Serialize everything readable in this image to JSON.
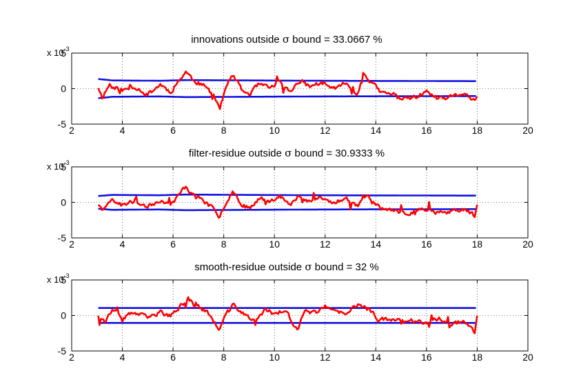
{
  "chart_data": [
    {
      "type": "line",
      "title_prefix": "innovations outside ",
      "title_symbol": "σ",
      "title_suffix": " bound = 33.0667 %",
      "xlim": [
        2,
        20
      ],
      "ylim": [
        -5,
        5
      ],
      "x_ticks": [
        "2",
        "4",
        "6",
        "8",
        "10",
        "12",
        "14",
        "16",
        "18",
        "20"
      ],
      "y_ticks": [
        "-5",
        "0",
        "5"
      ],
      "y_multiplier_base": "x 10",
      "y_multiplier_exp": "-3",
      "grid": true,
      "x_start": 3.05,
      "x_end": 18.0,
      "bound_points": [
        [
          3.05,
          1.35
        ],
        [
          3.6,
          1.15
        ],
        [
          5.5,
          1.1
        ],
        [
          6.5,
          1.2
        ],
        [
          9,
          1.15
        ],
        [
          12,
          1.1
        ],
        [
          18,
          1.05
        ]
      ],
      "anchors": [
        [
          3.05,
          0.2
        ],
        [
          3.2,
          -1.2
        ],
        [
          3.5,
          0.6
        ],
        [
          4.0,
          -0.3
        ],
        [
          4.5,
          0.3
        ],
        [
          5.0,
          -0.8
        ],
        [
          5.5,
          0.6
        ],
        [
          5.9,
          -0.5
        ],
        [
          6.2,
          1.0
        ],
        [
          6.5,
          2.4
        ],
        [
          6.8,
          1.2
        ],
        [
          7.2,
          0.4
        ],
        [
          7.6,
          -0.8
        ],
        [
          7.85,
          -2.8
        ],
        [
          8.1,
          0.3
        ],
        [
          8.35,
          1.9
        ],
        [
          8.7,
          -0.2
        ],
        [
          9.0,
          -0.8
        ],
        [
          9.4,
          0.6
        ],
        [
          9.8,
          0.0
        ],
        [
          10.2,
          1.0
        ],
        [
          10.6,
          -0.5
        ],
        [
          11.0,
          1.2
        ],
        [
          11.4,
          0.3
        ],
        [
          11.8,
          0.8
        ],
        [
          12.3,
          0.0
        ],
        [
          12.8,
          0.7
        ],
        [
          13.3,
          -0.7
        ],
        [
          13.5,
          2.2
        ],
        [
          13.8,
          1.0
        ],
        [
          14.2,
          -0.6
        ],
        [
          14.7,
          -0.8
        ],
        [
          15.2,
          -1.6
        ],
        [
          15.6,
          -1.1
        ],
        [
          16.0,
          -0.6
        ],
        [
          16.5,
          -1.5
        ],
        [
          17.0,
          -1.2
        ],
        [
          17.5,
          -0.6
        ],
        [
          17.9,
          -1.9
        ],
        [
          18.0,
          -1.5
        ]
      ],
      "seed": 11,
      "noise": 0.5
    },
    {
      "type": "line",
      "title_prefix": "filter-residue outside ",
      "title_symbol": "σ",
      "title_suffix": " bound = 30.9333 %",
      "xlim": [
        2,
        20
      ],
      "ylim": [
        -5,
        5
      ],
      "x_ticks": [
        "2",
        "4",
        "6",
        "8",
        "10",
        "12",
        "14",
        "16",
        "18",
        "20"
      ],
      "y_ticks": [
        "-5",
        "0",
        "5"
      ],
      "y_multiplier_base": "x 10",
      "y_multiplier_exp": "-3",
      "grid": true,
      "x_start": 3.05,
      "x_end": 18.0,
      "bound_points": [
        [
          3.05,
          0.9
        ],
        [
          3.6,
          1.05
        ],
        [
          5.5,
          1.0
        ],
        [
          6.5,
          1.1
        ],
        [
          9,
          1.05
        ],
        [
          12,
          1.0
        ],
        [
          18,
          0.95
        ]
      ],
      "anchors": [
        [
          3.05,
          -0.2
        ],
        [
          3.2,
          -1.0
        ],
        [
          3.5,
          0.5
        ],
        [
          4.0,
          -0.4
        ],
        [
          4.5,
          0.2
        ],
        [
          5.0,
          -0.6
        ],
        [
          5.5,
          0.4
        ],
        [
          5.9,
          -0.4
        ],
        [
          6.2,
          0.9
        ],
        [
          6.5,
          2.3
        ],
        [
          6.8,
          1.0
        ],
        [
          7.2,
          0.3
        ],
        [
          7.6,
          -1.0
        ],
        [
          7.8,
          -2.4
        ],
        [
          8.1,
          0.2
        ],
        [
          8.35,
          1.6
        ],
        [
          8.7,
          -0.1
        ],
        [
          9.0,
          -0.9
        ],
        [
          9.4,
          0.7
        ],
        [
          9.8,
          0.1
        ],
        [
          10.2,
          1.1
        ],
        [
          10.6,
          -0.5
        ],
        [
          11.0,
          1.0
        ],
        [
          11.4,
          0.2
        ],
        [
          11.8,
          0.7
        ],
        [
          12.3,
          -0.1
        ],
        [
          12.8,
          0.6
        ],
        [
          13.3,
          -0.5
        ],
        [
          13.5,
          0.9
        ],
        [
          13.8,
          0.5
        ],
        [
          14.2,
          -0.8
        ],
        [
          14.7,
          -1.4
        ],
        [
          15.2,
          -1.5
        ],
        [
          15.6,
          -1.2
        ],
        [
          16.0,
          -0.8
        ],
        [
          16.5,
          -1.6
        ],
        [
          17.0,
          -1.3
        ],
        [
          17.5,
          -0.9
        ],
        [
          17.9,
          -2.0
        ],
        [
          18.0,
          -0.5
        ]
      ],
      "seed": 23,
      "noise": 0.5
    },
    {
      "type": "line",
      "title_prefix": "smooth-residue outside ",
      "title_symbol": "σ",
      "title_suffix": " bound = 32 %",
      "xlim": [
        2,
        20
      ],
      "ylim": [
        -5,
        5
      ],
      "x_ticks": [
        "2",
        "4",
        "6",
        "8",
        "10",
        "12",
        "14",
        "16",
        "18",
        "20"
      ],
      "y_ticks": [
        "-5",
        "0",
        "5"
      ],
      "y_multiplier_base": "x 10",
      "y_multiplier_exp": "-3",
      "grid": true,
      "x_start": 3.05,
      "x_end": 18.0,
      "bound_points": [
        [
          3.05,
          1.05
        ],
        [
          18,
          1.05
        ]
      ],
      "anchors": [
        [
          3.05,
          0.1
        ],
        [
          3.3,
          -0.8
        ],
        [
          3.6,
          0.6
        ],
        [
          4.0,
          -0.3
        ],
        [
          4.5,
          0.4
        ],
        [
          5.0,
          -0.4
        ],
        [
          5.5,
          0.5
        ],
        [
          5.9,
          -0.2
        ],
        [
          6.2,
          1.0
        ],
        [
          6.6,
          2.4
        ],
        [
          6.9,
          1.4
        ],
        [
          7.3,
          0.6
        ],
        [
          7.6,
          -0.7
        ],
        [
          7.8,
          -2.2
        ],
        [
          8.1,
          0.2
        ],
        [
          8.4,
          1.5
        ],
        [
          8.8,
          0.2
        ],
        [
          9.2,
          -0.9
        ],
        [
          9.6,
          0.8
        ],
        [
          10.0,
          0.2
        ],
        [
          10.4,
          0.9
        ],
        [
          10.9,
          -2.2
        ],
        [
          11.2,
          0.6
        ],
        [
          11.6,
          0.4
        ],
        [
          12.0,
          1.2
        ],
        [
          12.4,
          0.4
        ],
        [
          12.9,
          0.3
        ],
        [
          13.3,
          1.6
        ],
        [
          13.7,
          0.9
        ],
        [
          14.1,
          -0.5
        ],
        [
          14.6,
          -0.5
        ],
        [
          15.2,
          -1.0
        ],
        [
          15.6,
          -0.6
        ],
        [
          16.0,
          -1.0
        ],
        [
          16.5,
          -0.5
        ],
        [
          17.0,
          -1.2
        ],
        [
          17.5,
          -0.7
        ],
        [
          17.9,
          -2.2
        ],
        [
          18.0,
          -0.2
        ]
      ],
      "seed": 37,
      "noise": 0.5
    }
  ]
}
